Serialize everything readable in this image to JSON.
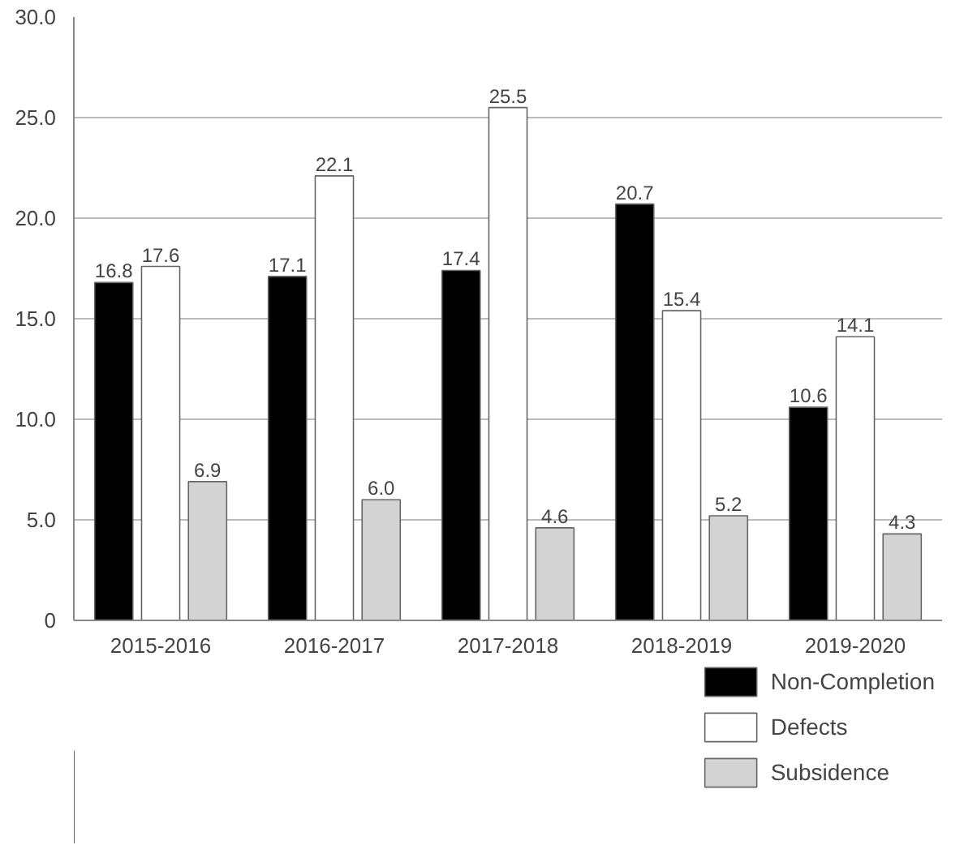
{
  "chart_data": {
    "type": "bar",
    "categories": [
      "2015-2016",
      "2016-2017",
      "2017-2018",
      "2018-2019",
      "2019-2020"
    ],
    "series": [
      {
        "name": "Non-Completion",
        "color": "#000000",
        "values": [
          16.8,
          17.1,
          17.4,
          20.7,
          10.6
        ],
        "value_labels": [
          "16.8",
          "17.1",
          "17.4",
          "20.7",
          "10.6"
        ]
      },
      {
        "name": "Defects",
        "color": "#ffffff",
        "values": [
          17.6,
          22.1,
          25.5,
          15.4,
          14.1
        ],
        "value_labels": [
          "17.6",
          "22.1",
          "25.5",
          "15.4",
          "14.1"
        ]
      },
      {
        "name": "Subsidence",
        "color": "#d3d3d3",
        "values": [
          6.9,
          6.0,
          4.6,
          5.2,
          4.3
        ],
        "value_labels": [
          "6.9",
          "6.0",
          "4.6",
          "5.2",
          "4.3"
        ]
      }
    ],
    "ylim": [
      0,
      30
    ],
    "yticks": [
      {
        "value": 0,
        "label": "0"
      },
      {
        "value": 5,
        "label": "5.0"
      },
      {
        "value": 10,
        "label": "10.0"
      },
      {
        "value": 15,
        "label": "15.0"
      },
      {
        "value": 20,
        "label": "20.0"
      },
      {
        "value": 25,
        "label": "25.0"
      },
      {
        "value": 30,
        "label": "30.0"
      }
    ],
    "grid": "y",
    "legend": "bottom right"
  }
}
